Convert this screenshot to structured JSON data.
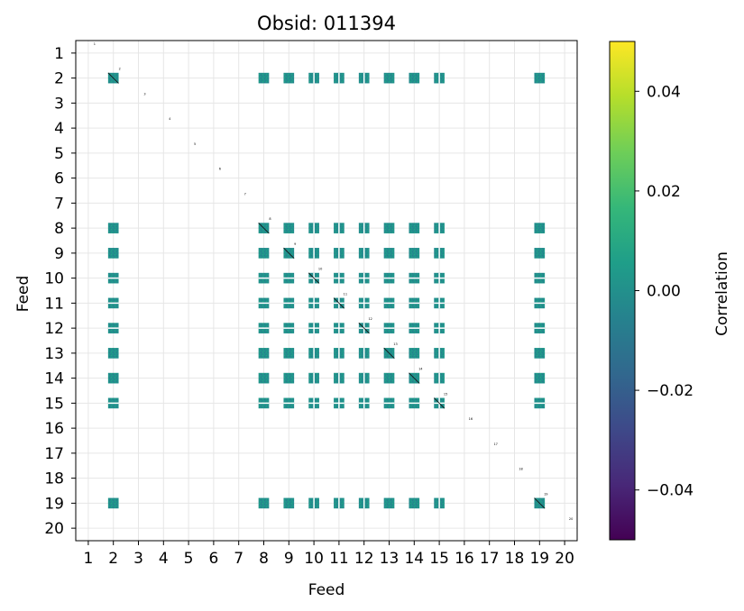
{
  "chart_data": {
    "type": "heatmap",
    "title": "Obsid: 011394",
    "xlabel": "Feed",
    "ylabel": "Feed",
    "feeds": [
      1,
      2,
      3,
      4,
      5,
      6,
      7,
      8,
      9,
      10,
      11,
      12,
      13,
      14,
      15,
      16,
      17,
      18,
      19,
      20
    ],
    "active_feeds": [
      2,
      8,
      9,
      10,
      11,
      12,
      13,
      14,
      15,
      19
    ],
    "feeds_with_internal_gap": [
      10,
      11,
      12,
      15
    ],
    "cell_value": 0.0,
    "diagonal_label": "feed number (tiny annotation on each diagonal cell)",
    "grid": true,
    "colorbar": {
      "label": "Correlation",
      "colormap": "viridis",
      "vmin": -0.05,
      "vmax": 0.05,
      "ticks": [
        -0.04,
        -0.02,
        0.0,
        0.02,
        0.04
      ],
      "tick_labels": [
        "−0.04",
        "−0.02",
        "0.00",
        "0.02",
        "0.04"
      ],
      "colors": [
        "#440154",
        "#482878",
        "#3e4989",
        "#31688e",
        "#26828e",
        "#1f9e89",
        "#35b779",
        "#6ece58",
        "#b5de2b",
        "#fde725"
      ]
    },
    "block_color": "#21918c"
  }
}
